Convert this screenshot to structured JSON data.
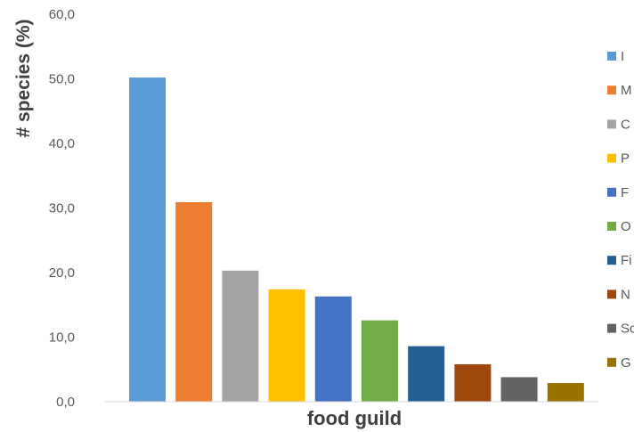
{
  "chart_data": {
    "type": "bar",
    "xlabel": "food guild",
    "ylabel": "# species (%)",
    "ylim": [
      0,
      60
    ],
    "yticks": [
      "0,0",
      "10,0",
      "20,0",
      "30,0",
      "40,0",
      "50,0",
      "60,0"
    ],
    "grid": false,
    "legend_position": "right",
    "categories": [
      "I",
      "M",
      "C",
      "P",
      "F",
      "O",
      "Fi",
      "N",
      "Sc",
      "G"
    ],
    "values": [
      50.2,
      30.9,
      20.3,
      17.4,
      16.3,
      12.6,
      8.6,
      5.8,
      3.8,
      2.9
    ],
    "colors": [
      "#5B9BD5",
      "#ED7D31",
      "#A5A5A5",
      "#FFC000",
      "#4472C4",
      "#70AD47",
      "#255E91",
      "#9E480E",
      "#636363",
      "#997300"
    ]
  }
}
